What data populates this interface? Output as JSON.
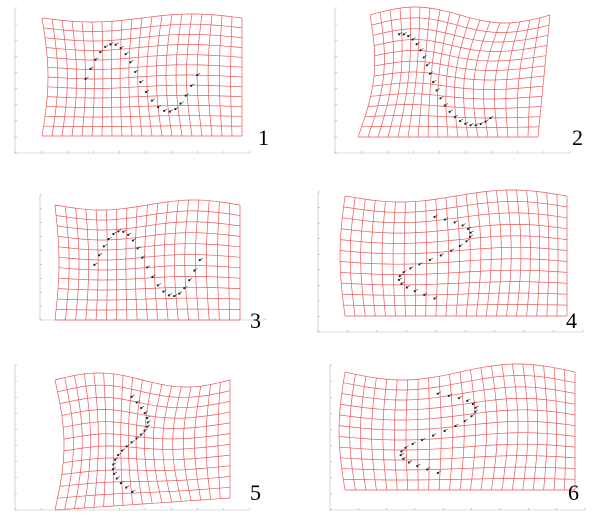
{
  "panels": [
    {
      "label": "1"
    },
    {
      "label": "2"
    },
    {
      "label": "3"
    },
    {
      "label": "4"
    },
    {
      "label": "5"
    },
    {
      "label": "6"
    }
  ]
}
